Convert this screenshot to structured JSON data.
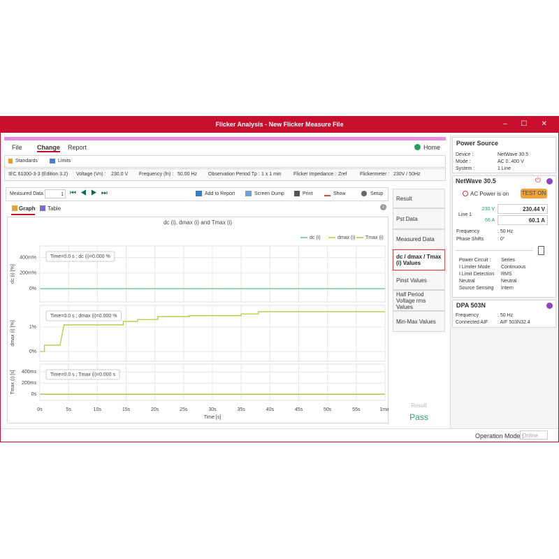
{
  "window": {
    "title": "Flicker Analysis - New Flicker Measure File"
  },
  "menu": {
    "items": [
      "File",
      "Change",
      "Report"
    ],
    "home": "Home"
  },
  "ribbon": {
    "items": [
      "Standards",
      "Limits"
    ]
  },
  "info_bar": {
    "standard": "IEC 61000-3-3 (Edition 3.2)",
    "fields": [
      {
        "label": "Voltage (Vn) :",
        "value": "230.0 V"
      },
      {
        "label": "Frequency (fn) :",
        "value": "50.00 Hz"
      },
      {
        "label": "Observation Period Tp :",
        "value": "1 x 1 min"
      },
      {
        "label": "Flicker Impedance :",
        "value": "Zref"
      },
      {
        "label": "Flickermeter :",
        "value": "230V / 50Hz"
      }
    ]
  },
  "toolbar": {
    "measured_label": "Measured Data :",
    "measured_value": "1",
    "buttons": [
      "Add to Report",
      "Screen Dump",
      "Print",
      "Show",
      "Setup"
    ]
  },
  "view_tabs": [
    "Graph",
    "Table"
  ],
  "chart_data": {
    "type": "line",
    "title": "dc (i), dmax (i) and Tmax (i)",
    "xlabel": "Time [s]",
    "xlim": [
      0,
      60
    ],
    "xticks": [
      {
        "value": 0,
        "label": "0s"
      },
      {
        "value": 5,
        "label": "5s"
      },
      {
        "value": 10,
        "label": "10s"
      },
      {
        "value": 15,
        "label": "15s"
      },
      {
        "value": 20,
        "label": "20s"
      },
      {
        "value": 25,
        "label": "25s"
      },
      {
        "value": 30,
        "label": "30s"
      },
      {
        "value": 35,
        "label": "35s"
      },
      {
        "value": 40,
        "label": "40s"
      },
      {
        "value": 45,
        "label": "45s"
      },
      {
        "value": 50,
        "label": "50s"
      },
      {
        "value": 55,
        "label": "55s"
      },
      {
        "value": 60,
        "label": "1min"
      }
    ],
    "grid": true,
    "panels": [
      {
        "ylabel": "dc (i) [%]",
        "ylim": [
          -0.17,
          0.55
        ],
        "yticks": [
          {
            "value": 0,
            "label": "0%"
          },
          {
            "value": 0.2,
            "label": "200m%"
          },
          {
            "value": 0.4,
            "label": "400m%"
          }
        ],
        "annotation": "Time=0.0 s ; dc (i)=0.000 %",
        "series": [
          {
            "name": "dc (i)",
            "color": "#5cc58c",
            "x": [
              0,
              60
            ],
            "values": [
              0,
              0
            ]
          }
        ]
      },
      {
        "ylabel": "dmax (i) [%]",
        "ylim": [
          -0.4,
          1.89
        ],
        "yticks": [
          {
            "value": 0,
            "label": "0%"
          },
          {
            "value": 1,
            "label": "1%"
          }
        ],
        "annotation": "Time=0.0 s ; dmax (i)=0.000 %",
        "series": [
          {
            "name": "dmax (i)",
            "color": "#b4cc3a",
            "x": [
              0,
              0.8,
              0.8,
              3.5,
              4.2,
              14.5,
              14.5,
              17,
              17,
              20.5,
              20.5,
              26,
              26,
              35,
              35,
              38,
              38,
              60
            ],
            "values": [
              0,
              0,
              0.26,
              0.26,
              1.09,
              1.09,
              1.23,
              1.23,
              1.31,
              1.31,
              1.43,
              1.43,
              1.47,
              1.47,
              1.54,
              1.54,
              1.63,
              1.63
            ]
          }
        ]
      },
      {
        "ylabel": "Tmax (i) [s]",
        "ylim": [
          -0.11,
          0.54
        ],
        "yticks": [
          {
            "value": 0,
            "label": "0s"
          },
          {
            "value": 0.2,
            "label": "200ms"
          },
          {
            "value": 0.4,
            "label": "400ms"
          }
        ],
        "annotation": "Time=0.0 s ; Tmax (i)=0.000 s",
        "series": [
          {
            "name": "Tmax (i)",
            "color": "#a4c23a",
            "x": [
              0,
              60
            ],
            "values": [
              0,
              0
            ]
          }
        ]
      }
    ]
  },
  "side_tabs": [
    "Result",
    "Pst Data",
    "Measured Data",
    "dc / dmax / Tmax (i) Values",
    "Pinst Values",
    "Half Period Voltage rms Values",
    "Min-Max Values"
  ],
  "result": {
    "label": "Result",
    "value": "Pass"
  },
  "power_source": {
    "title": "Power Source",
    "rows": [
      {
        "label": "Device :",
        "value": "NetWave 30.5"
      },
      {
        "label": "Mode :",
        "value": "AC 0..400 V"
      },
      {
        "label": "System :",
        "value": "1 Line"
      }
    ]
  },
  "netwave": {
    "title": "NetWave 30.5",
    "status": "AC Power is on",
    "test_button": "TEST ON",
    "line": "Line 1",
    "voltage_set": "230 V",
    "voltage_meas": "230.44 V",
    "current_set": "66 A",
    "current_meas": "60.1 A",
    "rows": [
      {
        "label": "Frequency",
        "value": ": 50 Hz"
      },
      {
        "label": "Phase Shifts",
        "value": ": 0°"
      }
    ],
    "circuit": [
      {
        "label": "Power Circuit :",
        "value": "Series"
      },
      {
        "label": "I Limiter Mode",
        "value": "Continuous"
      },
      {
        "label": "I Limit Detection",
        "value": "RMS"
      },
      {
        "label": "Neutral",
        "value": "Neutral"
      },
      {
        "label": "Source Sensing",
        "value": "Intern"
      }
    ]
  },
  "dpa": {
    "title": "DPA 503N",
    "rows": [
      {
        "label": "Frequency",
        "value": ": 50 Hz"
      },
      {
        "label": "Connected AIF",
        "value": ": AIF 503N32.4"
      }
    ]
  },
  "status_bar": {
    "label": "Operation Mode :",
    "value": "Online"
  }
}
